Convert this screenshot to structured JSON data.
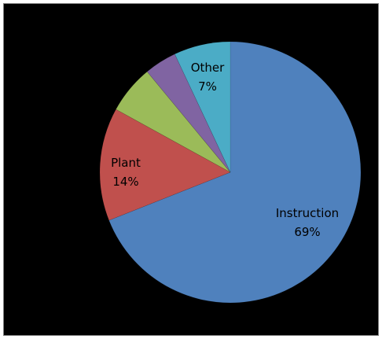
{
  "chart_data": {
    "type": "pie",
    "title": "",
    "slices": [
      {
        "label": "Instruction",
        "value": 69,
        "value_label": "69%",
        "color": "#4F81BD"
      },
      {
        "label": "Plant",
        "value": 14,
        "value_label": "14%",
        "color": "#C0504D"
      },
      {
        "label": "",
        "value": 6,
        "value_label": "",
        "color": "#9BBB59"
      },
      {
        "label": "",
        "value": 4,
        "value_label": "",
        "color": "#8064A2"
      },
      {
        "label": "Other",
        "value": 7,
        "value_label": "7%",
        "color": "#4BACC6"
      }
    ],
    "start_angle": "12 o'clock",
    "direction": "clockwise",
    "legend": "none"
  }
}
